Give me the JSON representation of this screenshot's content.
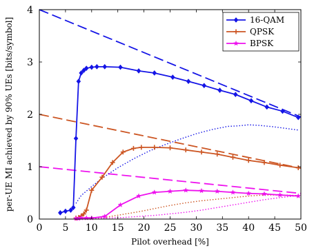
{
  "chart_data": {
    "type": "line",
    "xlabel": "Pilot overhead [%]",
    "ylabel": "per-UE MI achieved by 90% UEs [bits/symbol]",
    "xlim": [
      0,
      50
    ],
    "ylim": [
      0,
      4
    ],
    "x_ticks": [
      0,
      5,
      10,
      15,
      20,
      25,
      30,
      35,
      40,
      45,
      50
    ],
    "y_ticks": [
      0,
      1,
      2,
      3,
      4
    ],
    "grid": false,
    "legend_position": "top-right",
    "series": [
      {
        "name": "16-QAM",
        "style": "solid",
        "marker": "diamond",
        "color": "#1414e6",
        "x": [
          4,
          5,
          6,
          6.5,
          7,
          7.5,
          8,
          8.5,
          9,
          10,
          11,
          12.5,
          15.5,
          19,
          22,
          25.5,
          28.5,
          31.5,
          34.5,
          37.5,
          40.5,
          43.5,
          46.5,
          49.5
        ],
        "y": [
          0.12,
          0.15,
          0.17,
          0.22,
          1.54,
          2.63,
          2.79,
          2.84,
          2.88,
          2.9,
          2.91,
          2.91,
          2.9,
          2.83,
          2.79,
          2.71,
          2.63,
          2.55,
          2.46,
          2.38,
          2.26,
          2.14,
          2.06,
          1.94
        ]
      },
      {
        "name": "QPSK",
        "style": "solid",
        "marker": "plus",
        "color": "#cc5522",
        "x": [
          7,
          7.5,
          8,
          8.5,
          9,
          10,
          12,
          14,
          16,
          18,
          19.5,
          22,
          25,
          28,
          31,
          34,
          37,
          40,
          43,
          46,
          49.5
        ],
        "y": [
          0.02,
          0.03,
          0.06,
          0.1,
          0.17,
          0.55,
          0.8,
          1.08,
          1.28,
          1.35,
          1.37,
          1.37,
          1.36,
          1.32,
          1.28,
          1.24,
          1.18,
          1.12,
          1.08,
          1.03,
          0.98
        ]
      },
      {
        "name": "BPSK",
        "style": "solid",
        "marker": "star",
        "color": "#ee11ee",
        "x": [
          7,
          7.5,
          8,
          9,
          10,
          12.5,
          15.5,
          19,
          22,
          25,
          28,
          31,
          34,
          37,
          40,
          43,
          46,
          49.5
        ],
        "y": [
          0.01,
          0.01,
          0.02,
          0.02,
          0.02,
          0.05,
          0.27,
          0.44,
          0.51,
          0.53,
          0.55,
          0.54,
          0.53,
          0.51,
          0.49,
          0.48,
          0.46,
          0.44
        ]
      },
      {
        "style": "dashed",
        "color": "#1414e6",
        "x": [
          0,
          50
        ],
        "y": [
          4,
          1.95
        ]
      },
      {
        "style": "dashed",
        "color": "#cc5522",
        "x": [
          0,
          50
        ],
        "y": [
          2,
          0.97
        ]
      },
      {
        "style": "dashed",
        "color": "#ee11ee",
        "x": [
          0,
          50
        ],
        "y": [
          1,
          0.49
        ]
      },
      {
        "style": "dotted",
        "color": "#1414e6",
        "x": [
          7,
          8,
          10,
          12,
          15,
          18,
          21,
          24,
          27,
          30,
          33,
          36,
          38,
          40,
          42,
          45,
          48,
          49.5
        ],
        "y": [
          0.3,
          0.45,
          0.62,
          0.78,
          0.98,
          1.15,
          1.3,
          1.42,
          1.53,
          1.63,
          1.71,
          1.77,
          1.78,
          1.8,
          1.79,
          1.76,
          1.72,
          1.7
        ]
      },
      {
        "style": "dotted",
        "color": "#cc5522",
        "x": [
          7,
          10,
          13,
          16,
          19,
          22,
          25,
          28,
          31,
          34,
          37,
          40,
          43,
          46,
          49.5
        ],
        "y": [
          0.01,
          0.02,
          0.04,
          0.09,
          0.14,
          0.2,
          0.26,
          0.31,
          0.35,
          0.38,
          0.41,
          0.44,
          0.46,
          0.46,
          0.45
        ]
      },
      {
        "style": "dotted",
        "color": "#ee11ee",
        "x": [
          7,
          10,
          13,
          16,
          19,
          22,
          25,
          28,
          31,
          34,
          37,
          40,
          43,
          46,
          49.5
        ],
        "y": [
          0.0,
          0.01,
          0.02,
          0.03,
          0.05,
          0.07,
          0.1,
          0.13,
          0.17,
          0.22,
          0.27,
          0.32,
          0.37,
          0.41,
          0.45
        ]
      }
    ]
  }
}
